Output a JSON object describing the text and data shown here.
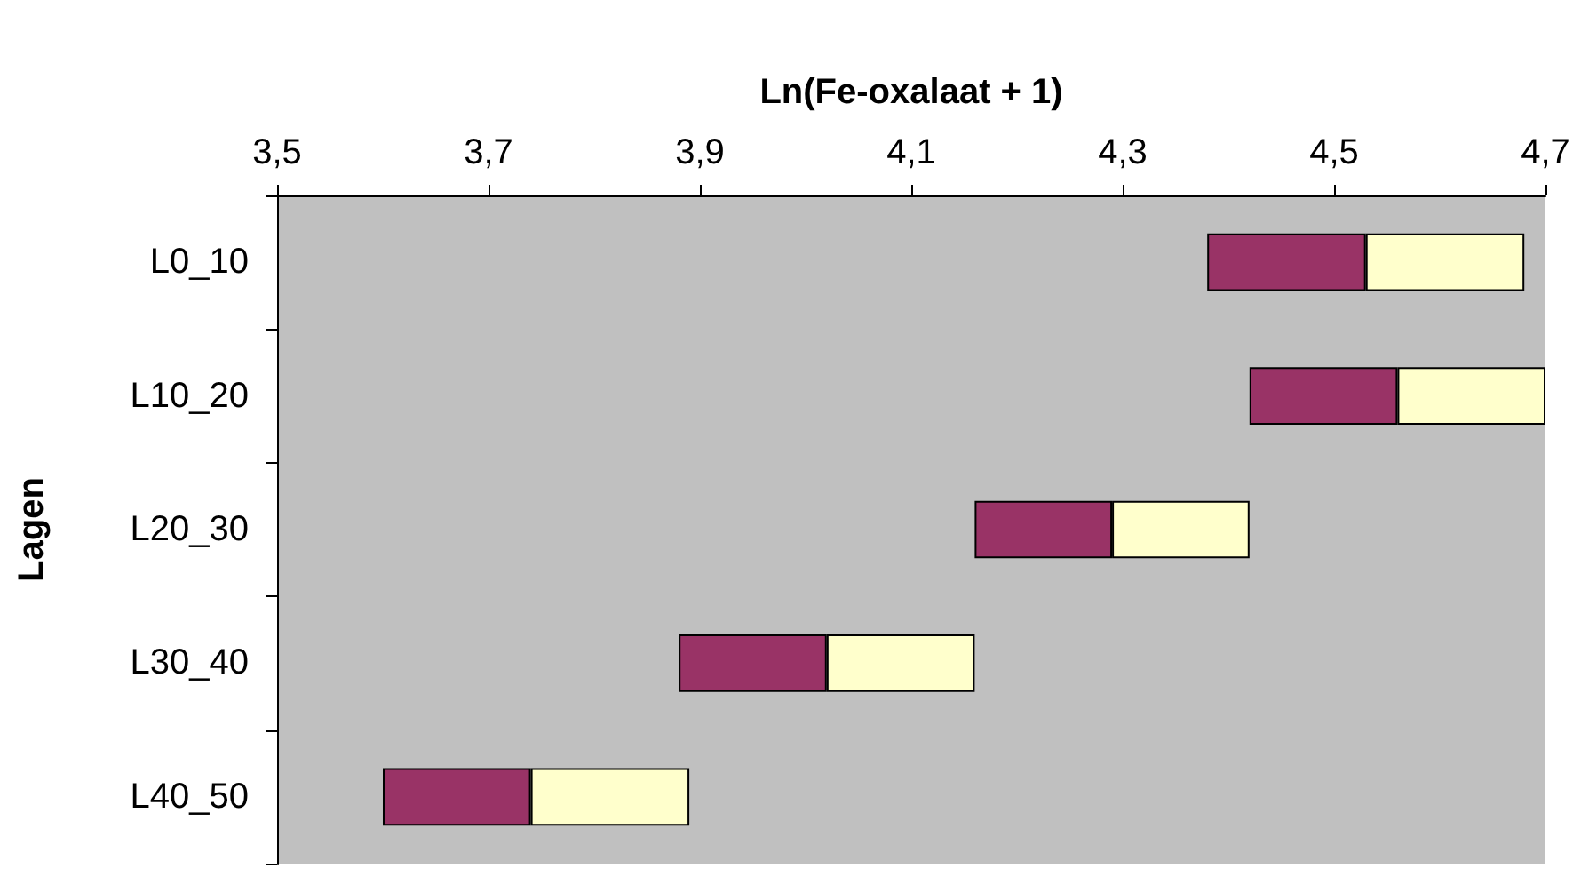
{
  "chart_data": {
    "type": "bar",
    "orientation": "horizontal",
    "xlabel": "Ln(Fe-oxalaat + 1)",
    "ylabel": "Lagen",
    "categories": [
      "L0_10",
      "L10_20",
      "L20_30",
      "L30_40",
      "L40_50"
    ],
    "series": [
      {
        "color": "#993366",
        "base": [
          4.38,
          4.42,
          4.16,
          3.88,
          3.6
        ],
        "values": [
          0.15,
          0.14,
          0.13,
          0.14,
          0.14
        ]
      },
      {
        "color": "#ffffcc",
        "base": [
          4.53,
          4.56,
          4.29,
          4.02,
          3.74
        ],
        "values": [
          0.15,
          0.14,
          0.13,
          0.14,
          0.15
        ]
      }
    ],
    "xlim": [
      3.5,
      4.7
    ],
    "xticks": [
      {
        "value": 3.5,
        "label": "3,5"
      },
      {
        "value": 3.7,
        "label": "3,7"
      },
      {
        "value": 3.9,
        "label": "3,9"
      },
      {
        "value": 4.1,
        "label": "4,1"
      },
      {
        "value": 4.3,
        "label": "4,3"
      },
      {
        "value": 4.5,
        "label": "4,5"
      },
      {
        "value": 4.7,
        "label": "4,7"
      }
    ],
    "grid": false
  }
}
